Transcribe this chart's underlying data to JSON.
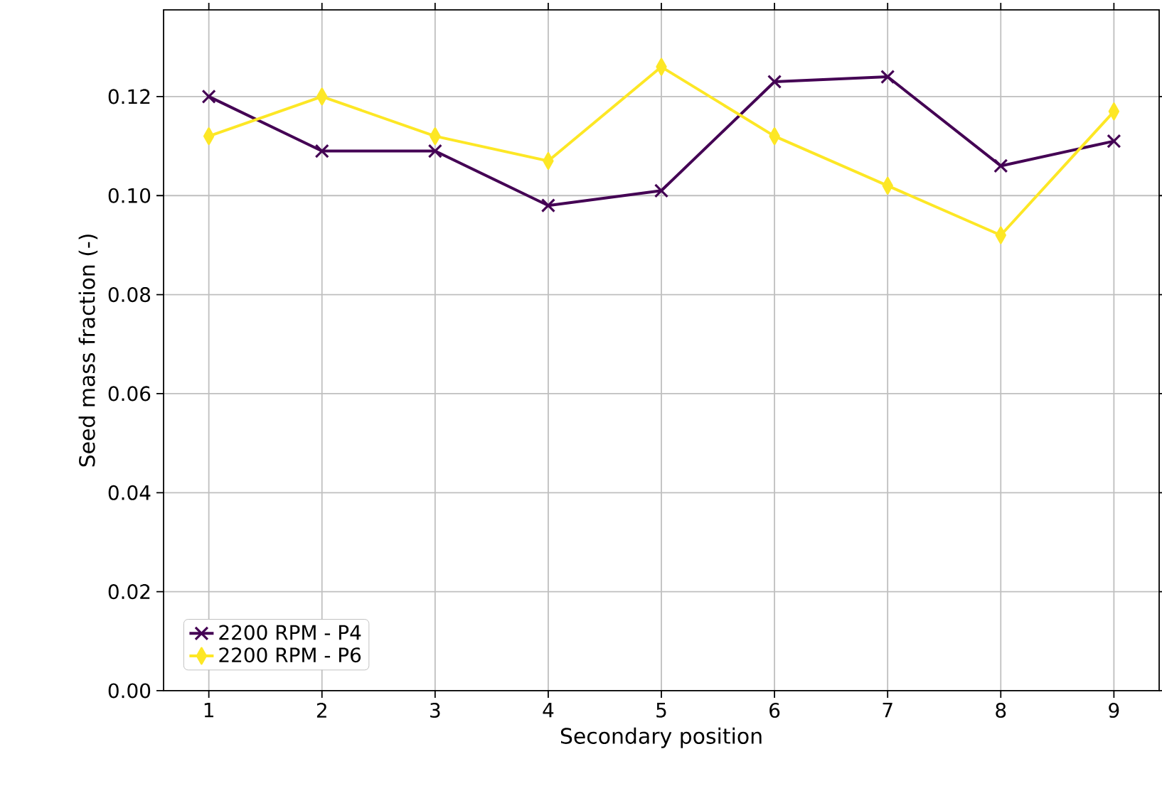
{
  "chart_data": {
    "type": "line",
    "xlabel": "Secondary position",
    "ylabel": "Seed mass fraction (-)",
    "x": [
      1,
      2,
      3,
      4,
      5,
      6,
      7,
      8,
      9
    ],
    "series": [
      {
        "name": "2200 RPM - P4",
        "color": "#440154",
        "marker": "cross",
        "values": [
          0.12,
          0.109,
          0.109,
          0.098,
          0.101,
          0.123,
          0.124,
          0.106,
          0.111
        ]
      },
      {
        "name": "2200 RPM - P6",
        "color": "#fde725",
        "marker": "diamond",
        "values": [
          0.112,
          0.12,
          0.112,
          0.107,
          0.126,
          0.112,
          0.102,
          0.092,
          0.117
        ]
      }
    ],
    "xlim": [
      0.6,
      9.4
    ],
    "ylim": [
      0,
      0.1375
    ],
    "xticks": [
      1,
      2,
      3,
      4,
      5,
      6,
      7,
      8,
      9
    ],
    "yticks": [
      {
        "value": 0,
        "label": "0.00"
      },
      {
        "value": 0.02,
        "label": "0.02"
      },
      {
        "value": 0.04,
        "label": "0.04"
      },
      {
        "value": 0.06,
        "label": "0.06"
      },
      {
        "value": 0.08,
        "label": "0.08"
      },
      {
        "value": 0.1,
        "label": "0.10"
      },
      {
        "value": 0.12,
        "label": "0.12"
      }
    ],
    "grid": true,
    "legend": "bottom left",
    "line_style": "solid"
  }
}
